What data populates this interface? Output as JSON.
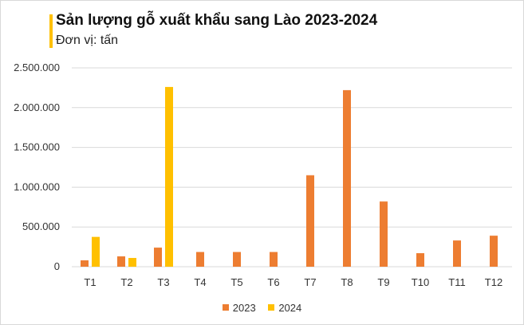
{
  "chart_data": {
    "type": "bar",
    "title": "Sản lượng gỗ xuất khẩu sang Lào 2023-2024",
    "subtitle": "Đơn vị: tấn",
    "categories": [
      "T1",
      "T2",
      "T3",
      "T4",
      "T5",
      "T6",
      "T7",
      "T8",
      "T9",
      "T10",
      "T11",
      "T12"
    ],
    "series": [
      {
        "name": "2023",
        "color": "#ED7D31",
        "values": [
          80000,
          130000,
          240000,
          185000,
          185000,
          185000,
          1150000,
          2220000,
          820000,
          170000,
          330000,
          390000
        ]
      },
      {
        "name": "2024",
        "color": "#FFC000",
        "values": [
          375000,
          110000,
          2260000,
          null,
          null,
          null,
          null,
          null,
          null,
          null,
          null,
          null
        ]
      }
    ],
    "ylim": [
      0,
      2500000
    ],
    "yticks": [
      "0",
      "500.000",
      "1.000.000",
      "1.500.000",
      "2.000.000",
      "2.500.000"
    ],
    "grid": true,
    "legend": "bottom",
    "accent_color": "#FFC000"
  }
}
